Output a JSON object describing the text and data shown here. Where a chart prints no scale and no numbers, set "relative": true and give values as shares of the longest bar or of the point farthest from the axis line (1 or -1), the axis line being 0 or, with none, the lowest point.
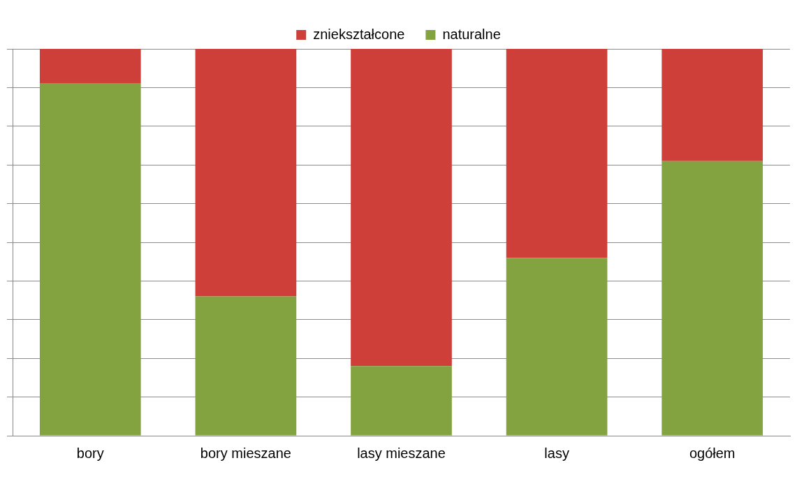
{
  "chart_data": {
    "type": "bar",
    "stacked": true,
    "relative": true,
    "categories": [
      "bory",
      "bory mieszane",
      "lasy mieszane",
      "lasy",
      "ogółem"
    ],
    "series": [
      {
        "name": "naturalne",
        "color": "#82a340",
        "values": [
          0.91,
          0.36,
          0.18,
          0.46,
          0.71
        ]
      },
      {
        "name": "zniekształcone",
        "color": "#cf3f3a",
        "values": [
          0.09,
          0.64,
          0.82,
          0.54,
          0.29
        ]
      }
    ],
    "grid": "y",
    "legend": "top",
    "tick_labels": "x"
  }
}
